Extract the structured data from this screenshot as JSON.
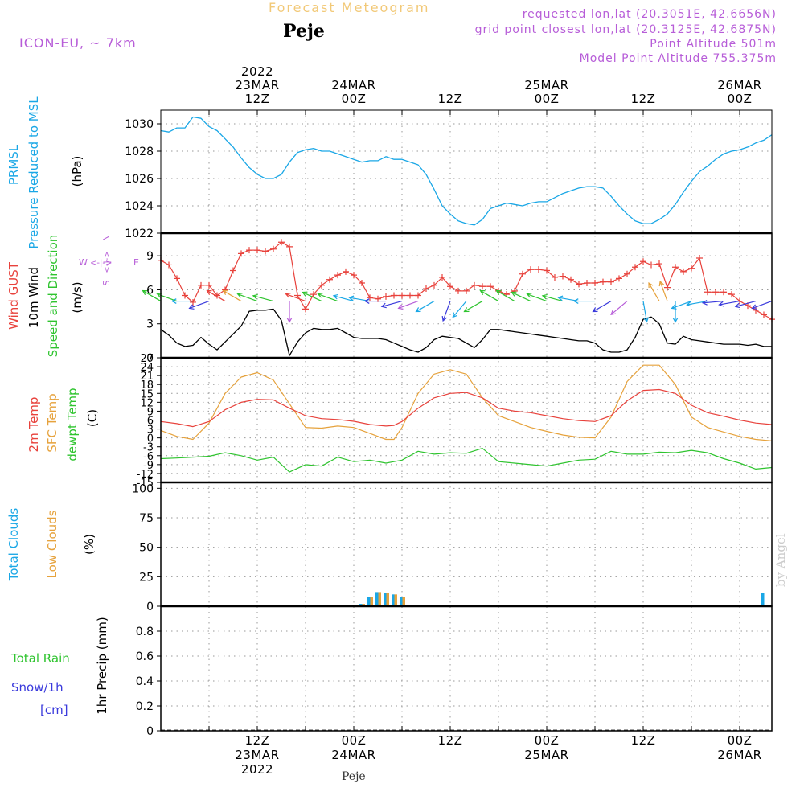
{
  "header": {
    "chart_title": "Forecast Meteogram",
    "station": "Peje",
    "model": "ICON-EU, ~ 7km",
    "requested": "requested lon,lat (20.3051E, 42.6656N)",
    "grid_point": "grid point closest lon,lat (20.3125E, 42.6875N)",
    "point_altitude": "Point Altitude 501m",
    "model_altitude": "Model Point Altitude 755.375m",
    "byline": "by Angel",
    "footer_station": "Peje"
  },
  "colors": {
    "pressure": "#1aa7e6",
    "gust": "#e8423c",
    "wind": "#000000",
    "temp2m": "#e8423c",
    "sfc": "#e6a23c",
    "dewpt": "#2fc42f",
    "total_clouds": "#1aa7e6",
    "low_clouds": "#e6a23c",
    "rain": "#2fc42f",
    "snow": "#3a3adc",
    "label_purple": "#b75dd8"
  },
  "time_axis": {
    "top_labels": [
      {
        "t": 12,
        "lines": [
          "2022",
          "23MAR",
          "12Z"
        ]
      },
      {
        "t": 24,
        "lines": [
          "24MAR",
          "00Z"
        ]
      },
      {
        "t": 36,
        "lines": [
          "12Z"
        ]
      },
      {
        "t": 48,
        "lines": [
          "25MAR",
          "00Z"
        ]
      },
      {
        "t": 60,
        "lines": [
          "12Z"
        ]
      },
      {
        "t": 72,
        "lines": [
          "26MAR",
          "00Z"
        ]
      }
    ],
    "bottom_labels": [
      {
        "t": 12,
        "lines": [
          "12Z",
          "23MAR",
          "2022"
        ]
      },
      {
        "t": 24,
        "lines": [
          "00Z",
          "24MAR"
        ]
      },
      {
        "t": 36,
        "lines": [
          "12Z"
        ]
      },
      {
        "t": 48,
        "lines": [
          "00Z",
          "25MAR"
        ]
      },
      {
        "t": 60,
        "lines": [
          "12Z"
        ]
      },
      {
        "t": 72,
        "lines": [
          "00Z",
          "26MAR"
        ]
      }
    ]
  },
  "panels": {
    "pressure": {
      "labels": [
        {
          "text": "PRMSL",
          "color": "#1aa7e6"
        },
        {
          "text": "Pressure Reduced to MSL",
          "color": "#1aa7e6"
        },
        {
          "text": "(hPa)",
          "color": "#000000"
        }
      ],
      "yticks": [
        "1022",
        "1024",
        "1026",
        "1028",
        "1030"
      ]
    },
    "wind": {
      "labels": [
        {
          "text": "Wind GUST",
          "color": "#e8423c"
        },
        {
          "text": "10m Wind",
          "color": "#000000"
        },
        {
          "text": "Speed and Direction",
          "color": "#2fc42f"
        },
        {
          "text": "(m/s)",
          "color": "#000000"
        }
      ],
      "compass": {
        "n": "N",
        "s": "S",
        "w": "W",
        "e": "E"
      },
      "yticks": [
        "0",
        "3",
        "6",
        "9"
      ]
    },
    "temperature": {
      "labels": [
        {
          "text": "2m Temp",
          "color": "#e8423c"
        },
        {
          "text": "SFC Temp",
          "color": "#e6a23c"
        },
        {
          "text": "dewpt Temp",
          "color": "#2fc42f"
        },
        {
          "text": "(C)",
          "color": "#000000"
        }
      ],
      "yticks": [
        "-15",
        "-12",
        "-9",
        "-6",
        "-3",
        "0",
        "3",
        "6",
        "9",
        "12",
        "15",
        "18",
        "21",
        "24",
        "27"
      ]
    },
    "clouds": {
      "labels": [
        {
          "text": "Total Clouds",
          "color": "#1aa7e6"
        },
        {
          "text": "Low Clouds",
          "color": "#e6a23c"
        },
        {
          "text": "(%)",
          "color": "#000000"
        }
      ],
      "yticks": [
        "0",
        "25",
        "50",
        "75",
        "100"
      ]
    },
    "precip": {
      "labels": [
        {
          "text": "1hr Precip (mm)",
          "color": "#000000"
        }
      ],
      "side_labels": [
        {
          "text": "Total  Rain",
          "color": "#2fc42f"
        },
        {
          "text": "Snow/1h",
          "color": "#3a3adc"
        },
        {
          "text": "[cm]",
          "color": "#3a3adc"
        }
      ],
      "yticks": [
        "0",
        "0.2",
        "0.4",
        "0.6",
        "0.8"
      ]
    }
  },
  "chart_data": [
    {
      "type": "line",
      "panel": "pressure",
      "ylabel": "Pressure Reduced to MSL (hPa)",
      "ylim": [
        1022,
        1031
      ],
      "x_hours": [
        0,
        1,
        2,
        3,
        4,
        5,
        6,
        7,
        8,
        9,
        10,
        11,
        12,
        13,
        14,
        15,
        16,
        17,
        18,
        19,
        20,
        21,
        22,
        23,
        24,
        25,
        26,
        27,
        28,
        29,
        30,
        31,
        32,
        33,
        34,
        35,
        36,
        37,
        38,
        39,
        40,
        41,
        42,
        43,
        44,
        45,
        46,
        47,
        48,
        49,
        50,
        51,
        52,
        53,
        54,
        55,
        56,
        57,
        58,
        59,
        60,
        61,
        62,
        63,
        64,
        65,
        66,
        67,
        68,
        69,
        70,
        71,
        72,
        73,
        74,
        75,
        76
      ],
      "series": [
        {
          "key": "prmsl",
          "name": "PRMSL",
          "values": [
            1029.5,
            1029.4,
            1029.7,
            1029.7,
            1030.5,
            1030.4,
            1029.8,
            1029.5,
            1028.9,
            1028.3,
            1027.5,
            1026.8,
            1026.3,
            1026.0,
            1026.0,
            1026.3,
            1027.2,
            1027.9,
            1028.1,
            1028.2,
            1028.0,
            1028.0,
            1027.8,
            1027.6,
            1027.4,
            1027.2,
            1027.3,
            1027.3,
            1027.6,
            1027.4,
            1027.4,
            1027.2,
            1027.0,
            1026.3,
            1025.2,
            1024.0,
            1023.4,
            1022.9,
            1022.7,
            1022.6,
            1023.0,
            1023.8,
            1024.0,
            1024.2,
            1024.1,
            1024.0,
            1024.2,
            1024.3,
            1024.3,
            1024.6,
            1024.9,
            1025.1,
            1025.3,
            1025.4,
            1025.4,
            1025.3,
            1024.7,
            1024.0,
            1023.4,
            1022.9,
            1022.7,
            1022.7,
            1023.0,
            1023.4,
            1024.1,
            1025.0,
            1025.8,
            1026.5,
            1026.9,
            1027.4,
            1027.8,
            1028.0,
            1028.1,
            1028.3,
            1028.6,
            1028.8,
            1029.2
          ]
        }
      ]
    },
    {
      "type": "line",
      "panel": "wind",
      "ylabel": "(m/s)",
      "ylim": [
        0,
        11
      ],
      "x_hours": [
        0,
        1,
        2,
        3,
        4,
        5,
        6,
        7,
        8,
        9,
        10,
        11,
        12,
        13,
        14,
        15,
        16,
        17,
        18,
        19,
        20,
        21,
        22,
        23,
        24,
        25,
        26,
        27,
        28,
        29,
        30,
        31,
        32,
        33,
        34,
        35,
        36,
        37,
        38,
        39,
        40,
        41,
        42,
        43,
        44,
        45,
        46,
        47,
        48,
        49,
        50,
        51,
        52,
        53,
        54,
        55,
        56,
        57,
        58,
        59,
        60,
        61,
        62,
        63,
        64,
        65,
        66,
        67,
        68,
        69,
        70,
        71,
        72,
        73,
        74,
        75,
        76
      ],
      "series": [
        {
          "key": "gust",
          "name": "Wind GUST",
          "values": [
            8.6,
            8.2,
            7.0,
            5.5,
            4.9,
            6.4,
            6.4,
            5.5,
            6.0,
            7.7,
            9.2,
            9.5,
            9.5,
            9.4,
            9.6,
            10.2,
            9.8,
            5.5,
            4.3,
            5.6,
            6.4,
            6.9,
            7.3,
            7.6,
            7.3,
            6.6,
            5.3,
            5.2,
            5.4,
            5.5,
            5.5,
            5.5,
            5.5,
            6.1,
            6.4,
            7.1,
            6.3,
            5.9,
            5.9,
            6.4,
            6.3,
            6.3,
            5.9,
            5.6,
            5.9,
            7.4,
            7.8,
            7.8,
            7.7,
            7.1,
            7.2,
            6.9,
            6.5,
            6.6,
            6.6,
            6.7,
            6.7,
            7.0,
            7.4,
            8.0,
            8.5,
            8.2,
            8.3,
            6.2,
            8.0,
            7.6,
            7.9,
            8.8,
            5.8,
            5.8,
            5.8,
            5.6,
            5.0,
            4.6,
            4.2,
            3.8,
            3.4
          ]
        },
        {
          "key": "wind10m",
          "name": "10m Wind",
          "values": [
            2.5,
            2.0,
            1.3,
            1.0,
            1.1,
            1.8,
            1.2,
            0.7,
            1.4,
            2.1,
            2.8,
            4.1,
            4.2,
            4.2,
            4.3,
            3.3,
            0.2,
            1.4,
            2.2,
            2.6,
            2.5,
            2.5,
            2.6,
            2.2,
            1.8,
            1.7,
            1.7,
            1.7,
            1.6,
            1.3,
            1.0,
            0.7,
            0.5,
            0.9,
            1.6,
            1.9,
            1.8,
            1.7,
            1.3,
            0.9,
            1.6,
            2.5,
            2.5,
            2.4,
            2.3,
            2.2,
            2.1,
            2.0,
            1.9,
            1.8,
            1.7,
            1.6,
            1.5,
            1.5,
            1.3,
            0.7,
            0.5,
            0.5,
            0.7,
            1.8,
            3.4,
            3.6,
            3.0,
            1.3,
            1.2,
            1.9,
            1.6,
            1.5,
            1.4,
            1.3,
            1.2,
            1.2,
            1.2,
            1.1,
            1.2,
            1.0,
            1.0
          ]
        }
      ],
      "barbs": [
        {
          "x": 0,
          "dir": 300,
          "color": "#2fc42f"
        },
        {
          "x": 2,
          "dir": 290,
          "color": "#2fc42f"
        },
        {
          "x": 4,
          "dir": 270,
          "color": "#1aa7e6"
        },
        {
          "x": 6,
          "dir": 250,
          "color": "#3a3adc"
        },
        {
          "x": 8,
          "dir": 300,
          "color": "#e8423c"
        },
        {
          "x": 10,
          "dir": 300,
          "color": "#e6a23c"
        },
        {
          "x": 12,
          "dir": 290,
          "color": "#2fc42f"
        },
        {
          "x": 14,
          "dir": 285,
          "color": "#2fc42f"
        },
        {
          "x": 16,
          "dir": 180,
          "color": "#b75dd8"
        },
        {
          "x": 18,
          "dir": 290,
          "color": "#e8423c"
        },
        {
          "x": 20,
          "dir": 295,
          "color": "#2fc42f"
        },
        {
          "x": 22,
          "dir": 290,
          "color": "#2fc42f"
        },
        {
          "x": 24,
          "dir": 285,
          "color": "#1aa7e6"
        },
        {
          "x": 26,
          "dir": 280,
          "color": "#1aa7e6"
        },
        {
          "x": 28,
          "dir": 270,
          "color": "#3a3adc"
        },
        {
          "x": 30,
          "dir": 255,
          "color": "#3a3adc"
        },
        {
          "x": 32,
          "dir": 250,
          "color": "#b75dd8"
        },
        {
          "x": 34,
          "dir": 240,
          "color": "#1aa7e6"
        },
        {
          "x": 36,
          "dir": 200,
          "color": "#3a3adc"
        },
        {
          "x": 38,
          "dir": 220,
          "color": "#1aa7e6"
        },
        {
          "x": 40,
          "dir": 240,
          "color": "#2fc42f"
        },
        {
          "x": 42,
          "dir": 300,
          "color": "#2fc42f"
        },
        {
          "x": 44,
          "dir": 300,
          "color": "#2fc42f"
        },
        {
          "x": 46,
          "dir": 295,
          "color": "#2fc42f"
        },
        {
          "x": 48,
          "dir": 290,
          "color": "#2fc42f"
        },
        {
          "x": 50,
          "dir": 285,
          "color": "#2fc42f"
        },
        {
          "x": 52,
          "dir": 280,
          "color": "#1aa7e6"
        },
        {
          "x": 54,
          "dir": 270,
          "color": "#1aa7e6"
        },
        {
          "x": 56,
          "dir": 240,
          "color": "#3a3adc"
        },
        {
          "x": 58,
          "dir": 230,
          "color": "#b75dd8"
        },
        {
          "x": 60,
          "dir": 170,
          "color": "#1aa7e6"
        },
        {
          "x": 62,
          "dir": 330,
          "color": "#e6a23c"
        },
        {
          "x": 63,
          "dir": 340,
          "color": "#e6a23c"
        },
        {
          "x": 64,
          "dir": 180,
          "color": "#1aa7e6"
        },
        {
          "x": 66,
          "dir": 250,
          "color": "#1aa7e6"
        },
        {
          "x": 68,
          "dir": 260,
          "color": "#1aa7e6"
        },
        {
          "x": 70,
          "dir": 265,
          "color": "#3a3adc"
        },
        {
          "x": 72,
          "dir": 260,
          "color": "#3a3adc"
        },
        {
          "x": 74,
          "dir": 255,
          "color": "#3a3adc"
        },
        {
          "x": 76,
          "dir": 250,
          "color": "#3a3adc"
        }
      ]
    },
    {
      "type": "line",
      "panel": "temperature",
      "ylabel": "(C)",
      "ylim": [
        -15,
        27
      ],
      "x_hours": [
        0,
        2,
        4,
        6,
        8,
        10,
        12,
        14,
        16,
        18,
        20,
        22,
        24,
        26,
        28,
        29,
        30,
        32,
        34,
        36,
        38,
        40,
        42,
        44,
        46,
        48,
        50,
        52,
        54,
        56,
        58,
        60,
        62,
        64,
        66,
        68,
        70,
        72,
        74,
        76
      ],
      "series": [
        {
          "key": "t2m",
          "name": "2m Temp",
          "values": [
            5.5,
            4.8,
            3.8,
            5.5,
            9.5,
            12.0,
            13.0,
            12.8,
            10.0,
            7.5,
            6.5,
            6.2,
            5.6,
            4.5,
            4.0,
            4.2,
            5.5,
            10.0,
            13.5,
            15.0,
            15.3,
            13.5,
            10.0,
            9.0,
            8.5,
            7.5,
            6.5,
            5.8,
            5.5,
            7.5,
            12.5,
            16.0,
            16.3,
            15.0,
            11.0,
            8.5,
            7.3,
            6.0,
            5.0,
            4.5
          ]
        },
        {
          "key": "sfc",
          "name": "SFC Temp",
          "values": [
            2.5,
            0.5,
            -0.5,
            5.0,
            15.0,
            20.5,
            22.0,
            19.5,
            11.5,
            3.5,
            3.3,
            4.0,
            3.5,
            1.5,
            -0.5,
            -0.5,
            3.5,
            15.0,
            21.5,
            23.0,
            21.5,
            13.5,
            7.5,
            5.5,
            3.5,
            2.2,
            1.0,
            0.2,
            0.0,
            7.0,
            19.0,
            24.5,
            24.5,
            18.0,
            7.0,
            3.5,
            2.0,
            0.5,
            -0.5,
            -1.0
          ]
        },
        {
          "key": "dewpt",
          "name": "dewpt Temp",
          "values": [
            -7.0,
            -6.8,
            -6.5,
            -6.2,
            -5.0,
            -6.0,
            -7.5,
            -6.5,
            -11.5,
            -9.0,
            -9.5,
            -6.5,
            -8.0,
            -7.5,
            -8.5,
            -8.0,
            -7.5,
            -4.5,
            -5.5,
            -5.0,
            -5.2,
            -3.5,
            -8.0,
            -8.5,
            -9.0,
            -9.5,
            -8.5,
            -7.5,
            -7.2,
            -4.5,
            -5.5,
            -5.5,
            -4.8,
            -5.0,
            -4.2,
            -5.0,
            -7.0,
            -8.5,
            -10.5,
            -10.0
          ]
        }
      ]
    },
    {
      "type": "bar",
      "panel": "clouds",
      "ylabel": "(%)",
      "ylim": [
        0,
        105
      ],
      "series": [
        {
          "key": "total",
          "name": "Total Clouds",
          "x": [
            25,
            26,
            27,
            28,
            29,
            30,
            63,
            64,
            73,
            74,
            75
          ],
          "values": [
            2,
            8,
            12,
            11,
            10,
            8,
            1,
            1,
            1,
            1,
            11
          ]
        },
        {
          "key": "low",
          "name": "Low Clouds",
          "x": [
            25,
            26,
            27,
            28,
            29,
            30
          ],
          "values": [
            2,
            8,
            12,
            11,
            10,
            8
          ]
        }
      ]
    },
    {
      "type": "bar",
      "panel": "precip",
      "ylabel": "1hr Precip (mm)",
      "ylim": [
        0,
        1
      ],
      "series": [
        {
          "key": "rain",
          "name": "Total  Rain",
          "x": [],
          "values": []
        },
        {
          "key": "snow",
          "name": "Snow/1h",
          "x": [],
          "values": []
        }
      ]
    }
  ]
}
